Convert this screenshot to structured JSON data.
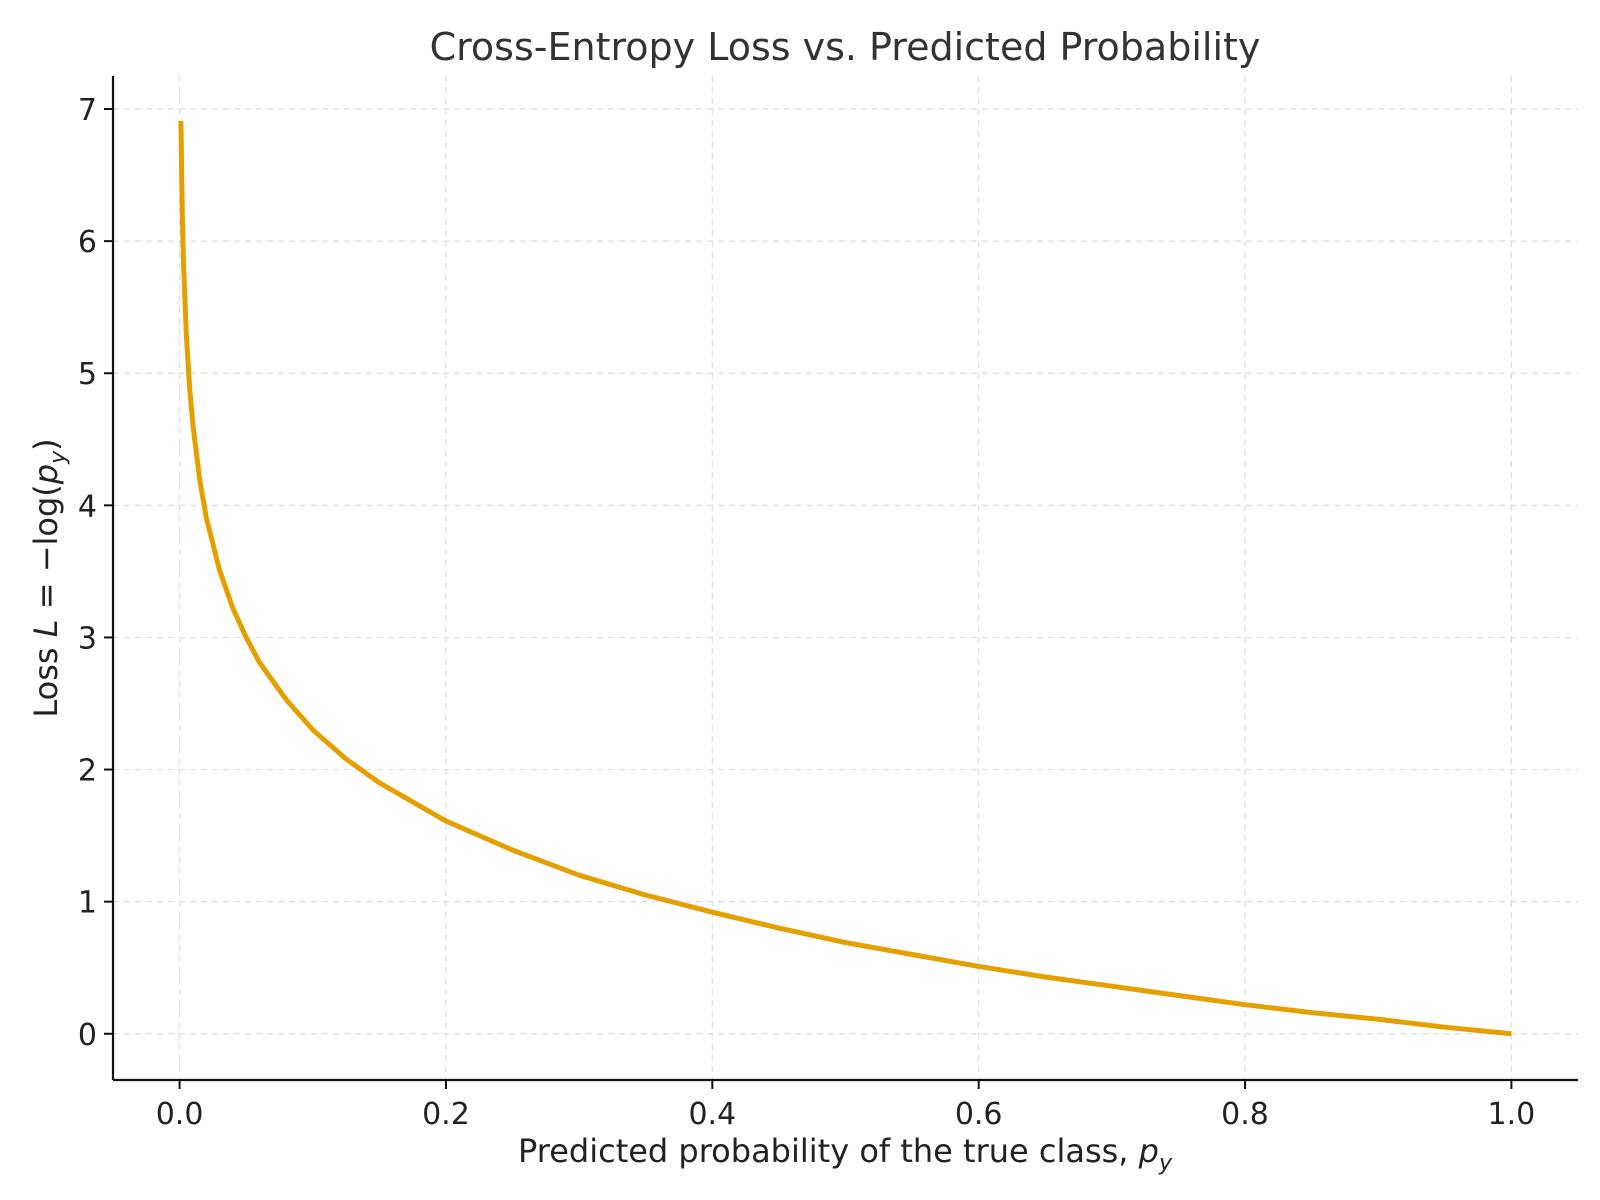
{
  "chart_data": {
    "type": "line",
    "title": "Cross-Entropy Loss vs. Predicted Probability",
    "xlabel": "Predicted probability of the true class, ",
    "xlabel_italic": "p",
    "xlabel_sub": "y",
    "ylabel_pre": "Loss ",
    "ylabel_italic": "L",
    "ylabel_mid": " = −log(",
    "ylabel_p": "p",
    "ylabel_sub": "y",
    "ylabel_post": ")",
    "xlim": [
      -0.05,
      1.05
    ],
    "ylim": [
      -0.35,
      7.25
    ],
    "xticks": [
      0.0,
      0.2,
      0.4,
      0.6,
      0.8,
      1.0
    ],
    "xtick_labels": [
      "0.0",
      "0.2",
      "0.4",
      "0.6",
      "0.8",
      "1.0"
    ],
    "yticks": [
      0,
      1,
      2,
      3,
      4,
      5,
      6,
      7
    ],
    "ytick_labels": [
      "0",
      "1",
      "2",
      "3",
      "4",
      "5",
      "6",
      "7"
    ],
    "grid": true,
    "series": [
      {
        "color": "#E69F00",
        "x": [
          0.001,
          0.002,
          0.003,
          0.005,
          0.0075,
          0.01,
          0.015,
          0.02,
          0.03,
          0.04,
          0.05,
          0.06,
          0.08,
          0.1,
          0.125,
          0.15,
          0.2,
          0.25,
          0.3,
          0.35,
          0.4,
          0.45,
          0.5,
          0.55,
          0.6,
          0.65,
          0.7,
          0.75,
          0.8,
          0.85,
          0.9,
          0.95,
          1.0
        ],
        "y": [
          6.91,
          6.21,
          5.81,
          5.3,
          4.89,
          4.61,
          4.2,
          3.91,
          3.51,
          3.22,
          3.0,
          2.81,
          2.53,
          2.3,
          2.08,
          1.9,
          1.61,
          1.39,
          1.2,
          1.05,
          0.92,
          0.8,
          0.69,
          0.6,
          0.51,
          0.43,
          0.36,
          0.29,
          0.22,
          0.16,
          0.11,
          0.05,
          0.0
        ]
      }
    ]
  }
}
